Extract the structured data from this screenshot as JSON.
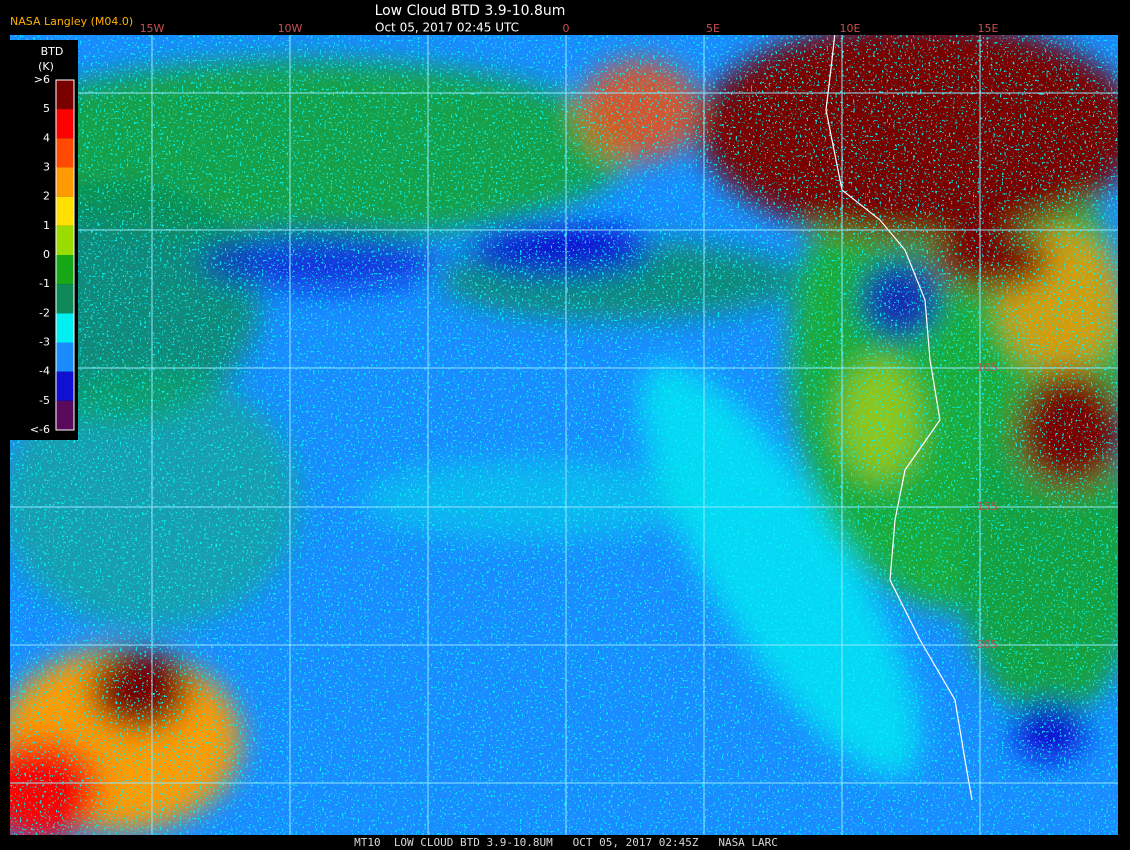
{
  "header": {
    "agency": "NASA Langley (M04.0)",
    "title": "Low Cloud BTD 3.9-10.8um",
    "subtitle": "Oct 05, 2017 02:45 UTC"
  },
  "legend": {
    "title": "BTD",
    "unit": "(K)",
    "labels": [
      ">6",
      "5",
      "4",
      "3",
      "2",
      "1",
      "0",
      "-1",
      "-2",
      "-3",
      "-4",
      "-5",
      "<-6"
    ],
    "colors": [
      "#7a0000",
      "#ff0000",
      "#ff4a00",
      "#ff9a00",
      "#ffe000",
      "#9adc00",
      "#16a816",
      "#0e8a5a",
      "#00f0f0",
      "#1a8cff",
      "#1010d0",
      "#5a0a5a"
    ]
  },
  "grid": {
    "longitudes": [
      "15W",
      "10W",
      "0",
      "5E",
      "10E",
      "15E"
    ],
    "latitudes": [
      "10S",
      "15S",
      "20S"
    ]
  },
  "footer": "MT10  LOW CLOUD BTD 3.9-10.8UM   OCT 05, 2017 02:45Z   NASA LARC"
}
